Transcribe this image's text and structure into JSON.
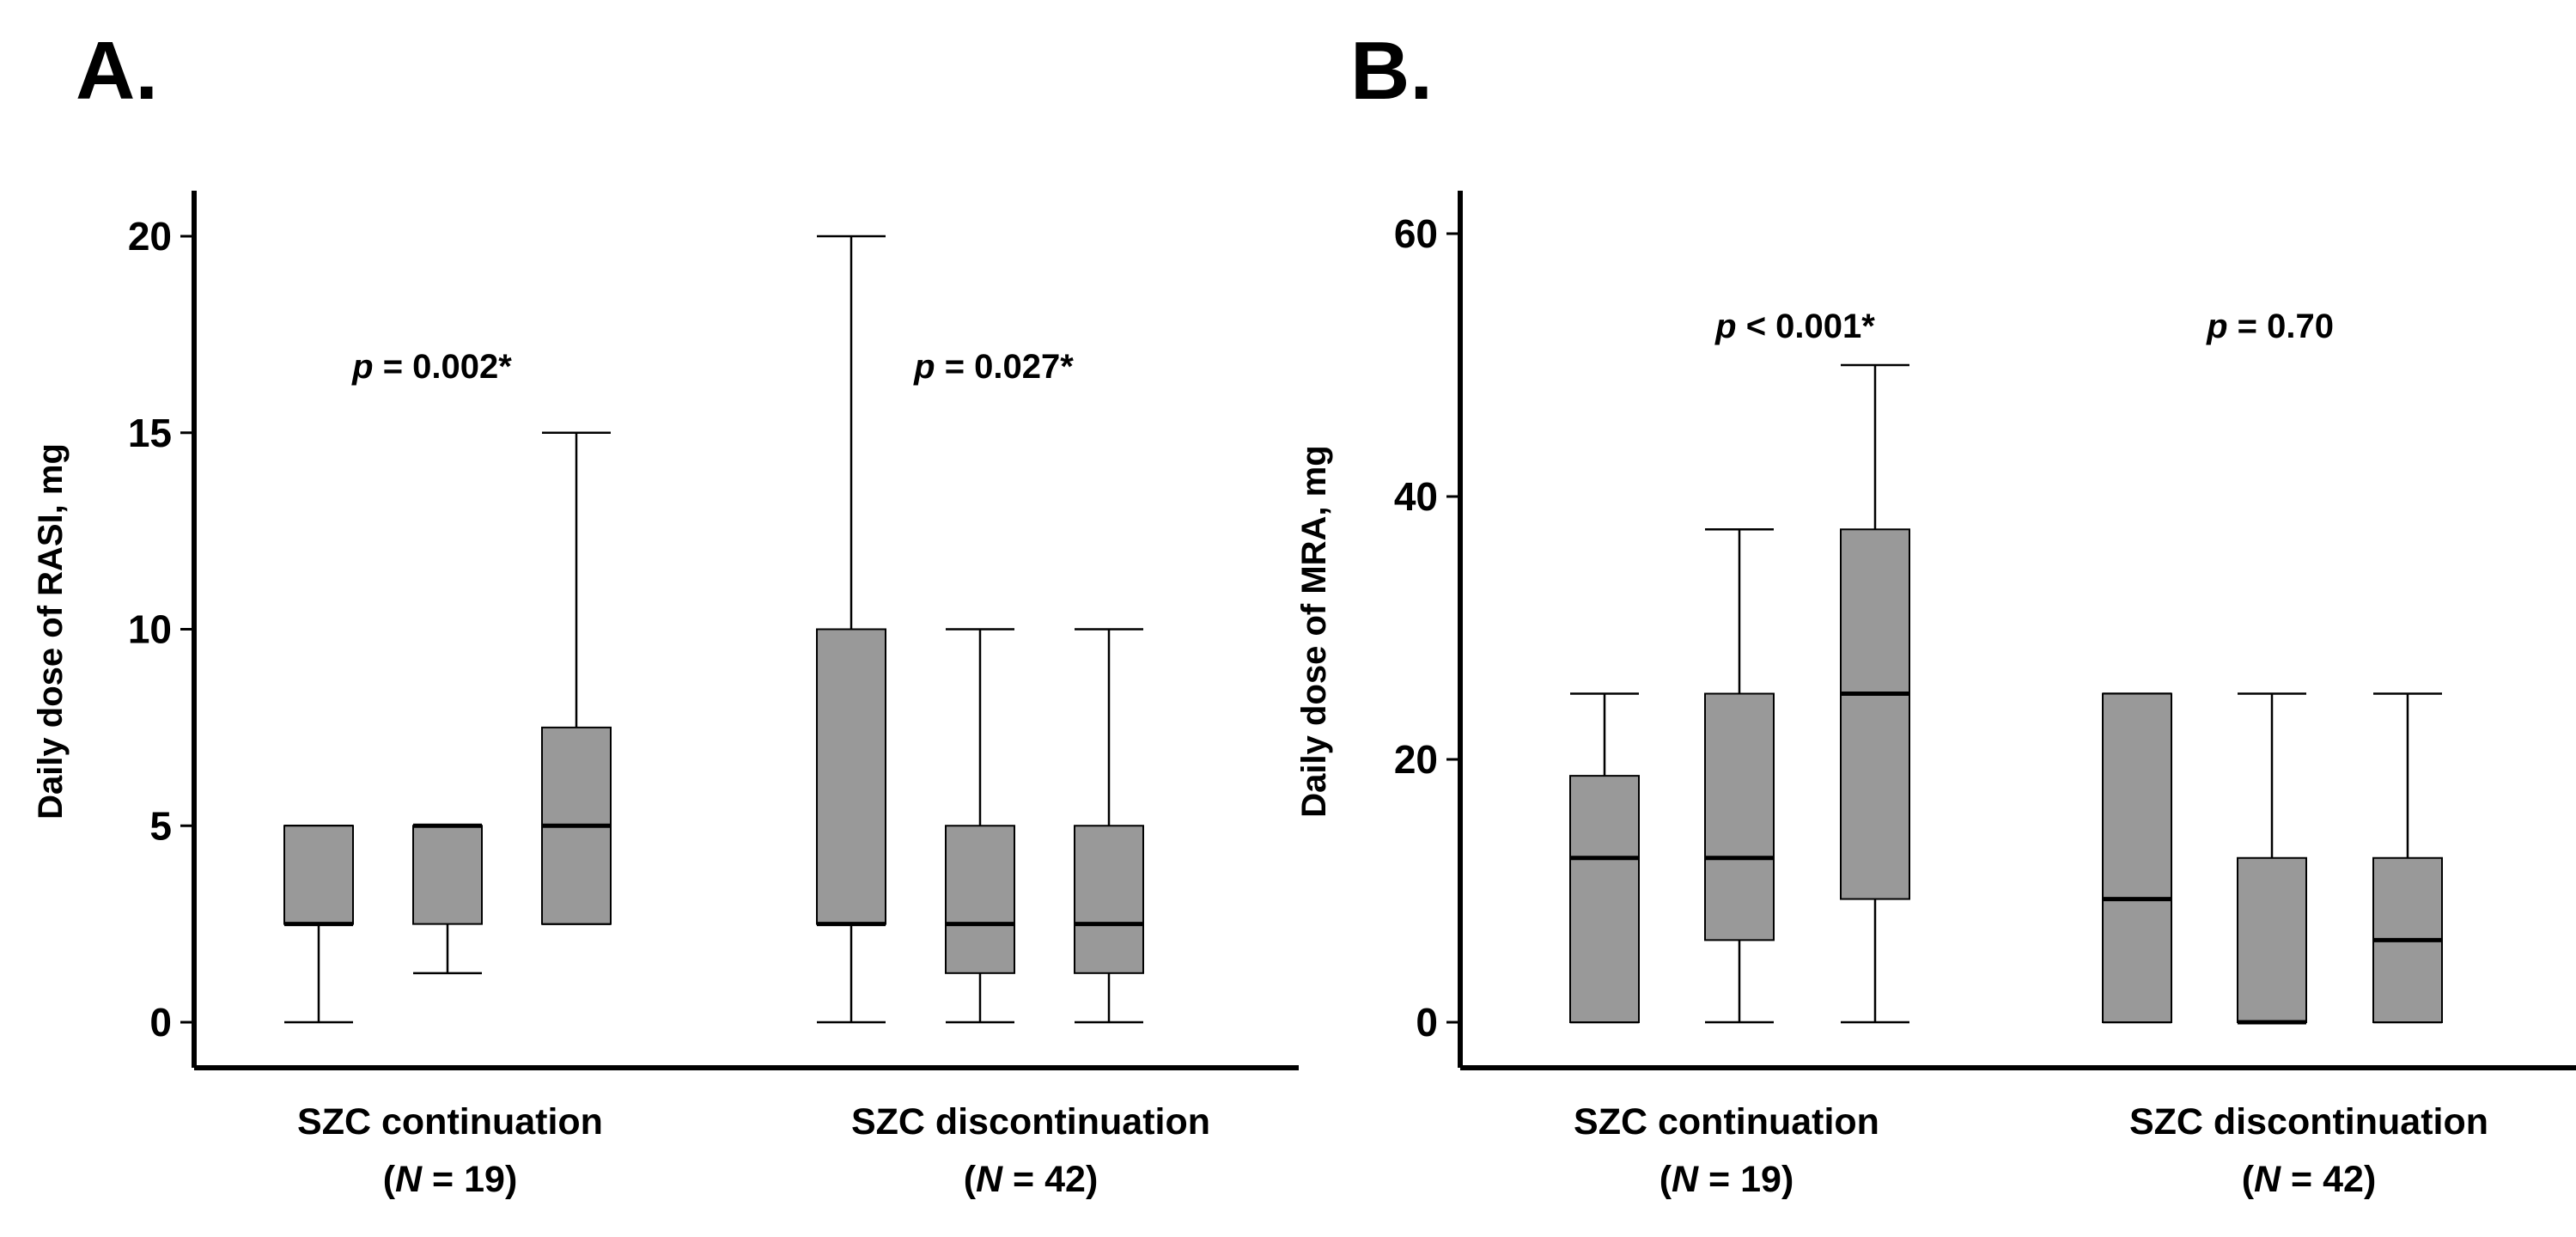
{
  "chart_data": [
    {
      "type": "box",
      "panel_label": "A.",
      "ylabel": "Daily dose of RASI, mg",
      "yticks": [
        0,
        5,
        10,
        15,
        20
      ],
      "ylim": [
        -1.1,
        21
      ],
      "groups": [
        {
          "name_line1": "SZC continuation",
          "name_prefix": "(",
          "name_italic": "N",
          "name_suffix": " = 19)",
          "p_prefix": "p",
          "p_value": " = 0.002*",
          "boxes": [
            {
              "min": 0,
              "q1": 2.5,
              "median": 2.5,
              "q3": 5,
              "max": 5
            },
            {
              "min": 1.25,
              "q1": 2.5,
              "median": 5,
              "q3": 5,
              "max": 5
            },
            {
              "min": 2.5,
              "q1": 2.5,
              "median": 5,
              "q3": 7.5,
              "max": 15
            }
          ]
        },
        {
          "name_line1": "SZC discontinuation",
          "name_prefix": "(",
          "name_italic": "N",
          "name_suffix": " = 42)",
          "p_prefix": "p",
          "p_value": " = 0.027*",
          "boxes": [
            {
              "min": 0,
              "q1": 2.5,
              "median": 2.5,
              "q3": 10,
              "max": 20
            },
            {
              "min": 0,
              "q1": 1.25,
              "median": 2.5,
              "q3": 5,
              "max": 10
            },
            {
              "min": 0,
              "q1": 1.25,
              "median": 2.5,
              "q3": 5,
              "max": 10
            }
          ]
        }
      ]
    },
    {
      "type": "box",
      "panel_label": "B.",
      "ylabel": "Daily dose of MRA, mg",
      "yticks": [
        0,
        20,
        40,
        60
      ],
      "ylim": [
        -3.3,
        63
      ],
      "groups": [
        {
          "name_line1": "SZC continuation",
          "name_prefix": "(",
          "name_italic": "N",
          "name_suffix": " = 19)",
          "p_prefix": "p",
          "p_value": " < 0.001*",
          "boxes": [
            {
              "min": 0,
              "q1": 0,
              "median": 12.5,
              "q3": 18.75,
              "max": 25
            },
            {
              "min": 0,
              "q1": 6.25,
              "median": 12.5,
              "q3": 25,
              "max": 37.5
            },
            {
              "min": 0,
              "q1": 9.375,
              "median": 25,
              "q3": 37.5,
              "max": 50
            }
          ]
        },
        {
          "name_line1": "SZC discontinuation",
          "name_prefix": "(",
          "name_italic": "N",
          "name_suffix": " = 42)",
          "p_prefix": "p",
          "p_value": " = 0.70",
          "boxes": [
            {
              "min": 0,
              "q1": 0,
              "median": 9.375,
              "q3": 25,
              "max": 25
            },
            {
              "min": 0,
              "q1": 0,
              "median": 0,
              "q3": 12.5,
              "max": 25
            },
            {
              "min": 0,
              "q1": 0,
              "median": 6.25,
              "q3": 12.5,
              "max": 25
            }
          ]
        }
      ]
    }
  ]
}
